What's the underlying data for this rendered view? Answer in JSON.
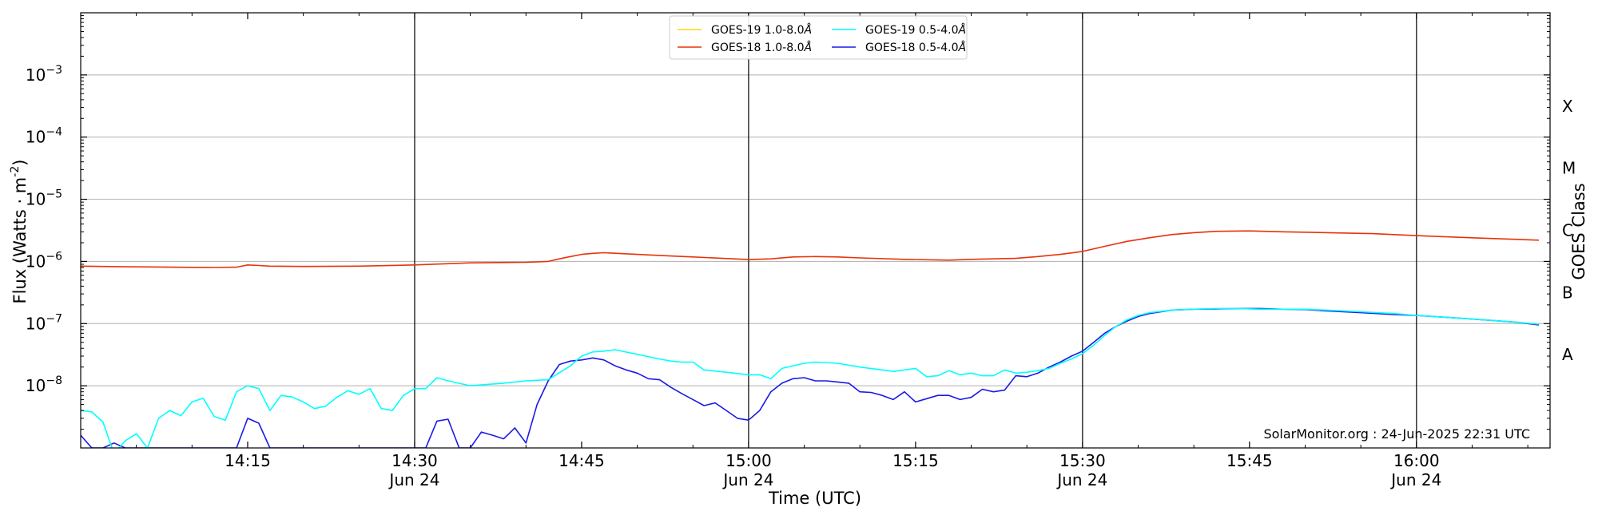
{
  "chart_data": {
    "type": "line",
    "xlabel": "Time (UTC)",
    "ylabel": "Flux (Watts · m",
    "ylabel_sup": "-2",
    "ylabel_tail": ")",
    "y_scale": "log",
    "ylim": [
      1e-09,
      0.01
    ],
    "xlim": [
      "14:00",
      "16:12"
    ],
    "grid": "horizontal",
    "legend_position": "top-center",
    "y_ticks": [
      {
        "value": 1e-08,
        "mantissa": "10",
        "exp": "−8"
      },
      {
        "value": 1e-07,
        "mantissa": "10",
        "exp": "−7"
      },
      {
        "value": 1e-06,
        "mantissa": "10",
        "exp": "−6"
      },
      {
        "value": 1e-05,
        "mantissa": "10",
        "exp": "−5"
      },
      {
        "value": 0.0001,
        "mantissa": "10",
        "exp": "−4"
      },
      {
        "value": 0.001,
        "mantissa": "10",
        "exp": "−3"
      }
    ],
    "x_ticks": [
      {
        "time": "14:15",
        "label": "14:15",
        "date": ""
      },
      {
        "time": "14:30",
        "label": "14:30",
        "date": "Jun 24"
      },
      {
        "time": "14:45",
        "label": "14:45",
        "date": ""
      },
      {
        "time": "15:00",
        "label": "15:00",
        "date": "Jun 24"
      },
      {
        "time": "15:15",
        "label": "15:15",
        "date": ""
      },
      {
        "time": "15:30",
        "label": "15:30",
        "date": "Jun 24"
      },
      {
        "time": "15:45",
        "label": "15:45",
        "date": ""
      },
      {
        "time": "16:00",
        "label": "16:00",
        "date": "Jun 24"
      }
    ],
    "vertical_lines": [
      "14:30",
      "15:00",
      "15:30",
      "16:00"
    ],
    "secondary_axis": {
      "label": "GOES Class",
      "classes": [
        {
          "name": "A",
          "value": 3.16e-08
        },
        {
          "name": "B",
          "value": 3.16e-07
        },
        {
          "name": "C",
          "value": 3.16e-06
        },
        {
          "name": "M",
          "value": 3.16e-05
        },
        {
          "name": "X",
          "value": 0.000316
        }
      ]
    },
    "watermark": "SolarMonitor.org : 24-Jun-2025 22:31 UTC",
    "series": [
      {
        "name": "GOES-19 1.0-8.0",
        "angstrom": "Å",
        "color": "#ffd700",
        "legend_col": 0,
        "legend_row": 0,
        "x": [],
        "y": []
      },
      {
        "name": "GOES-18 1.0-8.0",
        "angstrom": "Å",
        "color": "#e8320a",
        "legend_col": 0,
        "legend_row": 1,
        "x": [
          "14:00",
          "14:04",
          "14:08",
          "14:12",
          "14:14",
          "14:15",
          "14:16",
          "14:17",
          "14:20",
          "14:25",
          "14:30",
          "14:35",
          "14:40",
          "14:42",
          "14:43",
          "14:44",
          "14:45",
          "14:46",
          "14:47",
          "14:50",
          "14:52",
          "14:55",
          "15:00",
          "15:02",
          "15:04",
          "15:06",
          "15:08",
          "15:10",
          "15:14",
          "15:18",
          "15:20",
          "15:24",
          "15:26",
          "15:28",
          "15:30",
          "15:32",
          "15:34",
          "15:36",
          "15:38",
          "15:40",
          "15:42",
          "15:45",
          "15:48",
          "15:52",
          "15:56",
          "16:00",
          "16:05",
          "16:11"
        ],
        "y": [
          8.4e-07,
          8.2e-07,
          8.1e-07,
          8e-07,
          8.1e-07,
          8.8e-07,
          8.6e-07,
          8.4e-07,
          8.3e-07,
          8.4e-07,
          8.8e-07,
          9.5e-07,
          9.7e-07,
          1e-06,
          1.1e-06,
          1.2e-06,
          1.3e-06,
          1.35e-06,
          1.38e-06,
          1.3e-06,
          1.25e-06,
          1.18e-06,
          1.07e-06,
          1.1e-06,
          1.18e-06,
          1.2e-06,
          1.18e-06,
          1.14e-06,
          1.08e-06,
          1.05e-06,
          1.08e-06,
          1.12e-06,
          1.2e-06,
          1.3e-06,
          1.45e-06,
          1.75e-06,
          2.1e-06,
          2.4e-06,
          2.7e-06,
          2.9e-06,
          3.05e-06,
          3.1e-06,
          3e-06,
          2.9e-06,
          2.8e-06,
          2.6e-06,
          2.4e-06,
          2.2e-06
        ]
      },
      {
        "name": "GOES-19 0.5-4.0",
        "angstrom": "Å",
        "color": "#00ffff",
        "legend_col": 1,
        "legend_row": 0,
        "x": [
          "14:00",
          "14:01",
          "14:02",
          "14:03",
          "14:04",
          "14:05",
          "14:06",
          "14:07",
          "14:08",
          "14:09",
          "14:10",
          "14:11",
          "14:12",
          "14:13",
          "14:14",
          "14:15",
          "14:16",
          "14:17",
          "14:18",
          "14:19",
          "14:20",
          "14:21",
          "14:22",
          "14:23",
          "14:24",
          "14:25",
          "14:26",
          "14:27",
          "14:28",
          "14:29",
          "14:30",
          "14:31",
          "14:32",
          "14:33",
          "14:35",
          "14:38",
          "14:40",
          "14:42",
          "14:44",
          "14:45",
          "14:46",
          "14:47",
          "14:48",
          "14:50",
          "14:52",
          "14:53",
          "14:54",
          "14:55",
          "14:56",
          "14:58",
          "15:00",
          "15:01",
          "15:02",
          "15:03",
          "15:04",
          "15:05",
          "15:06",
          "15:08",
          "15:10",
          "15:12",
          "15:13",
          "15:14",
          "15:15",
          "15:16",
          "15:17",
          "15:18",
          "15:19",
          "15:20",
          "15:21",
          "15:22",
          "15:23",
          "15:24",
          "15:25",
          "15:26",
          "15:27",
          "15:28",
          "15:29",
          "15:30",
          "15:31",
          "15:32",
          "15:33",
          "15:34",
          "15:35",
          "15:36",
          "15:38",
          "15:40",
          "15:42",
          "15:44",
          "15:46",
          "15:48",
          "15:50",
          "15:52",
          "15:55",
          "15:58",
          "16:00",
          "16:03",
          "16:06",
          "16:09",
          "16:11"
        ],
        "y": [
          4e-09,
          3.8e-09,
          2.6e-09,
          8e-10,
          1.3e-09,
          1.7e-09,
          1e-09,
          3e-09,
          4e-09,
          3.3e-09,
          5.5e-09,
          6.3e-09,
          3.2e-09,
          2.8e-09,
          8e-09,
          1e-08,
          9e-09,
          4e-09,
          7e-09,
          6.6e-09,
          5.5e-09,
          4.3e-09,
          4.7e-09,
          6.5e-09,
          8.3e-09,
          7.3e-09,
          9e-09,
          4.3e-09,
          4e-09,
          7e-09,
          9e-09,
          9e-09,
          1.35e-08,
          1.2e-08,
          1e-08,
          1.1e-08,
          1.2e-08,
          1.25e-08,
          2.1e-08,
          3e-08,
          3.5e-08,
          3.6e-08,
          3.8e-08,
          3.2e-08,
          2.7e-08,
          2.5e-08,
          2.4e-08,
          2.4e-08,
          1.8e-08,
          1.65e-08,
          1.5e-08,
          1.5e-08,
          1.3e-08,
          1.9e-08,
          2.1e-08,
          2.3e-08,
          2.4e-08,
          2.3e-08,
          2e-08,
          1.8e-08,
          1.7e-08,
          1.8e-08,
          1.9e-08,
          1.4e-08,
          1.45e-08,
          1.75e-08,
          1.5e-08,
          1.6e-08,
          1.45e-08,
          1.45e-08,
          1.8e-08,
          1.6e-08,
          1.65e-08,
          1.75e-08,
          1.9e-08,
          2.3e-08,
          2.7e-08,
          3.3e-08,
          4.5e-08,
          6.5e-08,
          9e-08,
          1.15e-07,
          1.35e-07,
          1.5e-07,
          1.65e-07,
          1.7e-07,
          1.75e-07,
          1.75e-07,
          1.7e-07,
          1.7e-07,
          1.7e-07,
          1.65e-07,
          1.55e-07,
          1.45e-07,
          1.35e-07,
          1.25e-07,
          1.15e-07,
          1.05e-07,
          9.8e-08
        ]
      },
      {
        "name": "GOES-18 0.5-4.0",
        "angstrom": "Å",
        "color": "#1a1ae6",
        "legend_col": 1,
        "legend_row": 1,
        "x": [
          "14:00",
          "14:01",
          "14:02",
          "14:03",
          "14:04",
          "14:05",
          "14:06",
          "14:13",
          "14:14",
          "14:15",
          "14:16",
          "14:17",
          "14:30",
          "14:31",
          "14:32",
          "14:33",
          "14:34",
          "14:35",
          "14:36",
          "14:37",
          "14:38",
          "14:39",
          "14:40",
          "14:41",
          "14:42",
          "14:43",
          "14:44",
          "14:45",
          "14:46",
          "14:47",
          "14:48",
          "14:49",
          "14:50",
          "14:51",
          "14:52",
          "14:53",
          "14:54",
          "14:55",
          "14:56",
          "14:57",
          "14:58",
          "14:59",
          "15:00",
          "15:01",
          "15:02",
          "15:03",
          "15:04",
          "15:05",
          "15:06",
          "15:07",
          "15:08",
          "15:09",
          "15:10",
          "15:11",
          "15:12",
          "15:13",
          "15:14",
          "15:15",
          "15:16",
          "15:17",
          "15:18",
          "15:19",
          "15:20",
          "15:21",
          "15:22",
          "15:23",
          "15:24",
          "15:25",
          "15:26",
          "15:27",
          "15:28",
          "15:29",
          "15:30",
          "15:31",
          "15:32",
          "15:33",
          "15:34",
          "15:35",
          "15:36",
          "15:38",
          "15:40",
          "15:42",
          "15:44",
          "15:46",
          "15:48",
          "15:50",
          "15:52",
          "15:55",
          "15:58",
          "16:00",
          "16:03",
          "16:06",
          "16:09",
          "16:11"
        ],
        "y": [
          1.6e-09,
          1e-09,
          1e-09,
          1.2e-09,
          1e-09,
          1e-09,
          1e-09,
          1e-09,
          1e-09,
          3e-09,
          2.5e-09,
          1e-09,
          1e-09,
          1e-09,
          2.7e-09,
          2.9e-09,
          1e-09,
          1e-09,
          1.8e-09,
          1.6e-09,
          1.4e-09,
          2.1e-09,
          1.2e-09,
          5e-09,
          1.2e-08,
          2.2e-08,
          2.5e-08,
          2.6e-08,
          2.8e-08,
          2.6e-08,
          2.1e-08,
          1.8e-08,
          1.6e-08,
          1.3e-08,
          1.25e-08,
          9.5e-09,
          7.5e-09,
          6e-09,
          4.8e-09,
          5.3e-09,
          4e-09,
          3e-09,
          2.8e-09,
          4e-09,
          8e-09,
          1.1e-08,
          1.3e-08,
          1.35e-08,
          1.2e-08,
          1.2e-08,
          1.15e-08,
          1.1e-08,
          8e-09,
          7.8e-09,
          7e-09,
          6e-09,
          8e-09,
          5.5e-09,
          6.2e-09,
          7e-09,
          7e-09,
          6e-09,
          6.5e-09,
          8.8e-09,
          8e-09,
          8.5e-09,
          1.45e-08,
          1.4e-08,
          1.6e-08,
          2e-08,
          2.4e-08,
          3e-08,
          3.6e-08,
          5e-08,
          7e-08,
          9e-08,
          1.1e-07,
          1.3e-07,
          1.45e-07,
          1.65e-07,
          1.7e-07,
          1.72e-07,
          1.75e-07,
          1.75e-07,
          1.7e-07,
          1.68e-07,
          1.6e-07,
          1.5e-07,
          1.4e-07,
          1.35e-07,
          1.25e-07,
          1.15e-07,
          1.05e-07,
          9.5e-08
        ]
      }
    ]
  }
}
